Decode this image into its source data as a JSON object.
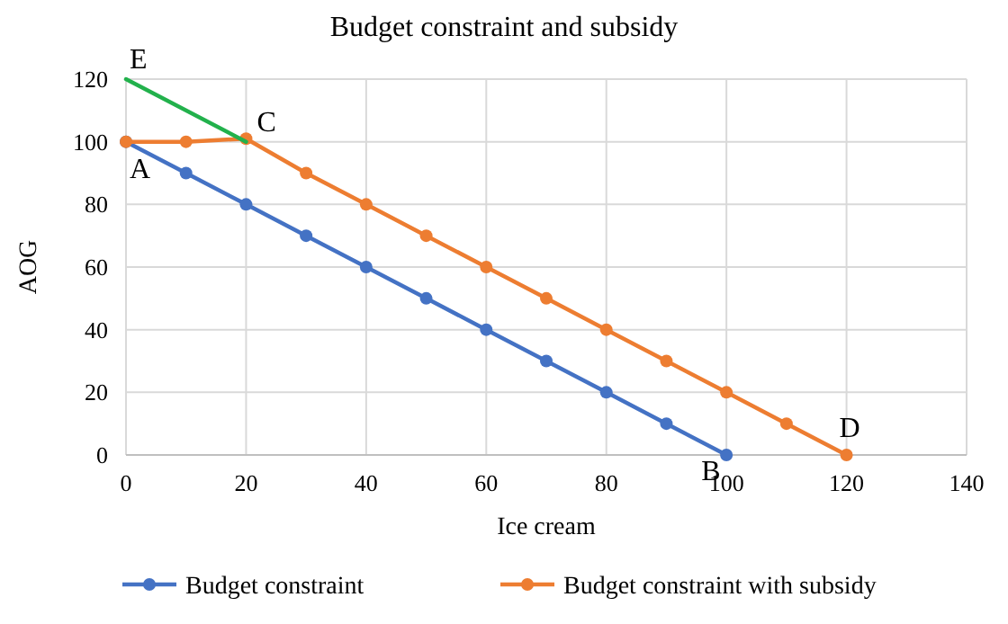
{
  "chart_data": {
    "type": "line",
    "title": "Budget constraint and subsidy",
    "xlabel": "Ice cream",
    "ylabel": "AOG",
    "xlim": [
      0,
      140
    ],
    "xticks": [
      0,
      20,
      40,
      60,
      80,
      100,
      120,
      140
    ],
    "ylim": [
      0,
      120
    ],
    "yticks": [
      0,
      20,
      40,
      60,
      80,
      100,
      120
    ],
    "grid": true,
    "legend": "bottom",
    "marker": "circle",
    "series": [
      {
        "name": "Budget constraint",
        "color": "#4472c4",
        "x": [
          0,
          10,
          20,
          30,
          40,
          50,
          60,
          70,
          80,
          90,
          100
        ],
        "values": [
          100,
          90,
          80,
          70,
          60,
          50,
          40,
          30,
          20,
          10,
          0
        ]
      },
      {
        "name": "Budget constraint with subsidy",
        "color": "#ed7d31",
        "x": [
          0,
          10,
          20,
          30,
          40,
          50,
          60,
          70,
          80,
          90,
          100,
          110,
          120
        ],
        "values": [
          100,
          100,
          101,
          90,
          80,
          70,
          60,
          50,
          40,
          30,
          20,
          10,
          0
        ]
      },
      {
        "color": "#22b14c",
        "marker": "none",
        "x": [
          0,
          20
        ],
        "values": [
          120,
          100
        ]
      }
    ],
    "annotations": [
      {
        "text": "E",
        "x": 0,
        "y": 120
      },
      {
        "text": "C",
        "x": 20,
        "y": 100
      },
      {
        "text": "A",
        "x": 0,
        "y": 100
      },
      {
        "text": "B",
        "x": 100,
        "y": 0
      },
      {
        "text": "D",
        "x": 120,
        "y": 0
      }
    ]
  }
}
